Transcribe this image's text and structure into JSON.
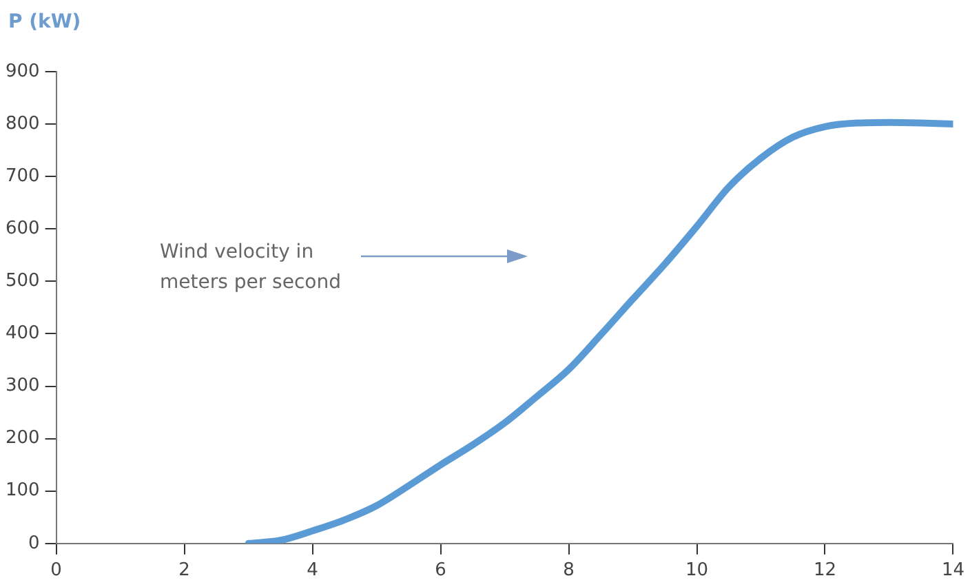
{
  "chart_data": {
    "type": "line",
    "ylabel": "P (kW)",
    "annotations": [
      "Wind velocity in meters per second"
    ],
    "x": [
      3,
      3.5,
      4,
      4.5,
      5,
      5.5,
      6,
      6.5,
      7,
      7.5,
      8,
      8.5,
      9,
      9.5,
      10,
      10.5,
      11,
      11.5,
      12,
      12.5,
      13,
      13.5,
      14
    ],
    "series": [
      {
        "color": "#5b9bd5",
        "values": [
          0,
          6,
          24,
          45,
          72,
          110,
          150,
          188,
          230,
          280,
          332,
          398,
          466,
          533,
          605,
          680,
          735,
          775,
          795,
          802,
          803,
          802,
          800
        ]
      }
    ],
    "xlim": [
      0,
      14
    ],
    "xticks": [
      0,
      2,
      4,
      6,
      8,
      10,
      12,
      14
    ],
    "ylim": [
      0,
      900
    ],
    "yticks": [
      0,
      100,
      200,
      300,
      400,
      500,
      600,
      700,
      800,
      900
    ],
    "grid": false,
    "legend": false,
    "marker": "none",
    "line_style": "solid"
  }
}
